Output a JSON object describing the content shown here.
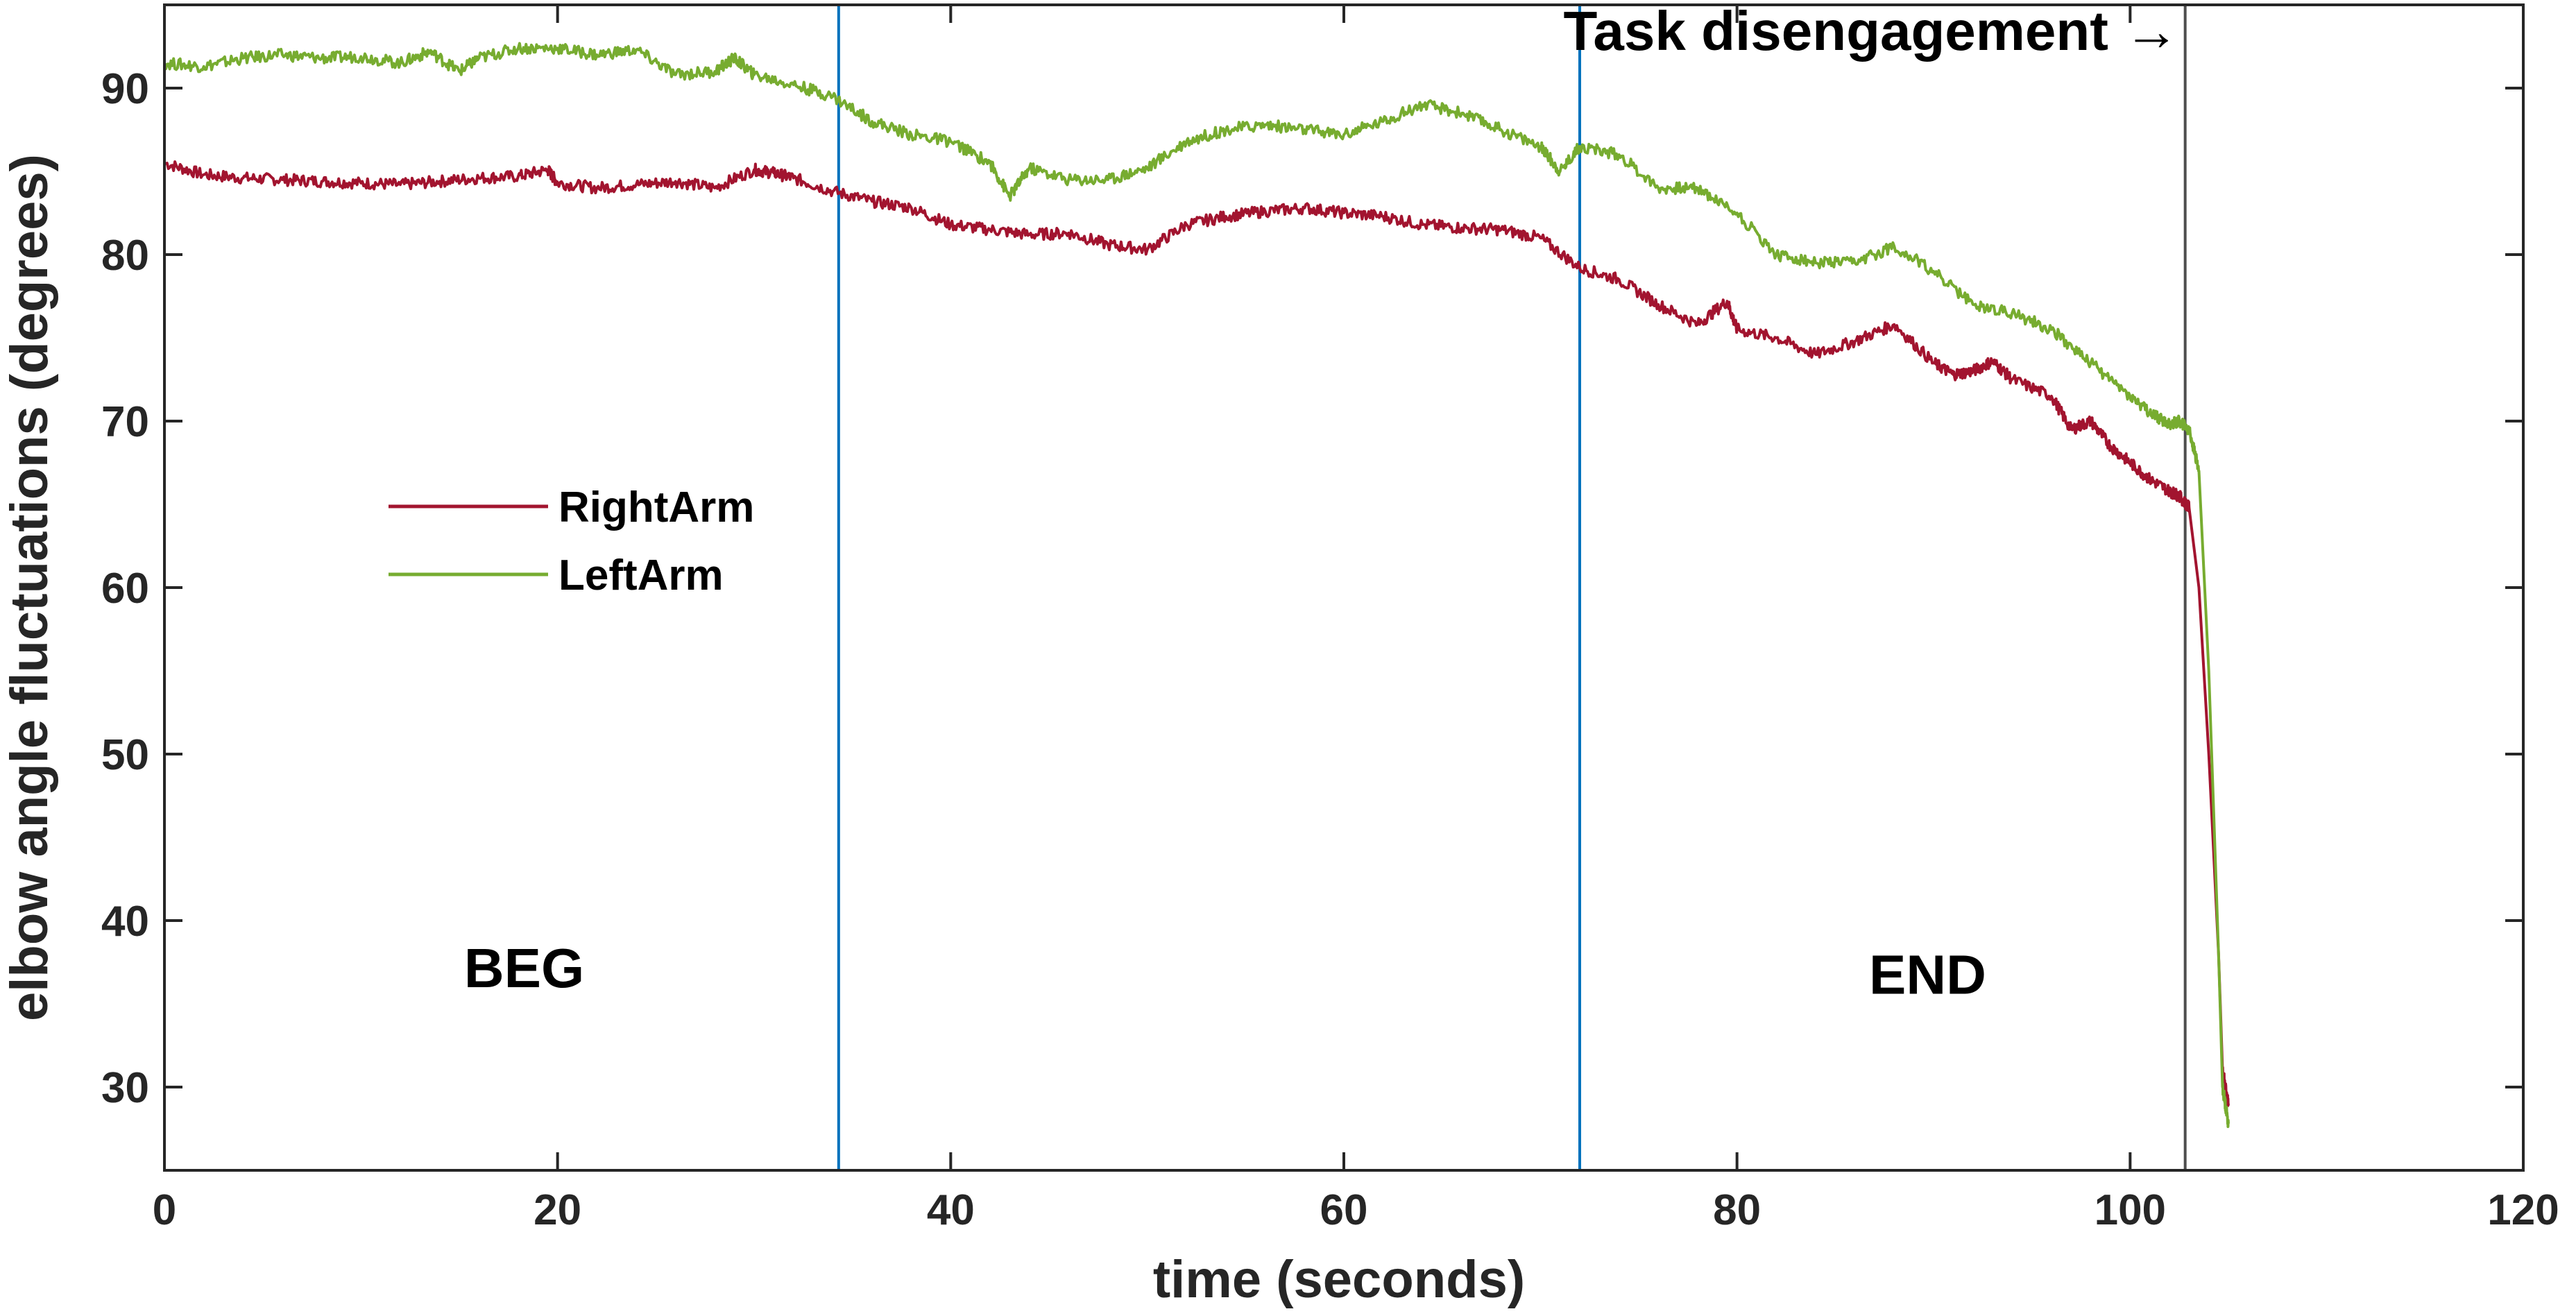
{
  "chart_data": {
    "type": "line",
    "title": "",
    "xlabel": "time (seconds)",
    "ylabel": "elbow angle fluctuations (degrees)",
    "xlim": [
      0,
      120
    ],
    "ylim": [
      25,
      95
    ],
    "xticks": [
      0,
      20,
      40,
      60,
      80,
      100,
      120
    ],
    "yticks": [
      30,
      40,
      50,
      60,
      70,
      80,
      90
    ],
    "xtick_labels": [
      "0",
      "20",
      "40",
      "60",
      "80",
      "100",
      "120"
    ],
    "ytick_labels": [
      "30",
      "40",
      "50",
      "60",
      "70",
      "80",
      "90"
    ],
    "grid": false,
    "legend_position": "left",
    "series": [
      {
        "name": "RightArm",
        "color": "#a2142f",
        "x": [
          0,
          2,
          4,
          6,
          8,
          10,
          12,
          14,
          16,
          18,
          19.5,
          20,
          22,
          24,
          26,
          28,
          30,
          31,
          32,
          34,
          36,
          38,
          40,
          42,
          44,
          46,
          48,
          50,
          52,
          54,
          56,
          58,
          60,
          62,
          64,
          66,
          68,
          70,
          72,
          74,
          76,
          78,
          79.5,
          80,
          82,
          84,
          86,
          88,
          90,
          91,
          92,
          93,
          94,
          96,
          97,
          98,
          99,
          100,
          101,
          102,
          102.5,
          103,
          103.5,
          104,
          104.5,
          104.7,
          105
        ],
        "y": [
          85.5,
          84.8,
          84.6,
          84.5,
          84.4,
          84.3,
          84.2,
          84.4,
          84.6,
          84.7,
          85.1,
          84.3,
          84.0,
          84.2,
          84.4,
          84.0,
          85.1,
          84.9,
          84.6,
          83.8,
          83.2,
          82.8,
          81.8,
          81.5,
          81.2,
          81.3,
          80.6,
          80.3,
          81.8,
          82.3,
          82.6,
          82.8,
          82.5,
          82.3,
          81.8,
          81.6,
          81.5,
          81.0,
          79.2,
          78.5,
          77.0,
          75.8,
          77.2,
          75.5,
          75.0,
          74.0,
          74.8,
          75.8,
          73.5,
          72.8,
          73.0,
          73.6,
          72.5,
          71.5,
          69.5,
          70.0,
          68.5,
          67.5,
          66.5,
          65.8,
          65.5,
          64.8,
          60.0,
          50.0,
          38.0,
          31.0,
          29.0
        ]
      },
      {
        "name": "LeftArm",
        "color": "#77ac30",
        "x": [
          0,
          2,
          4,
          6,
          8,
          10,
          12,
          13.5,
          15,
          16,
          18,
          20,
          22,
          24,
          26,
          28,
          29,
          30,
          32,
          34,
          36,
          38,
          40,
          42,
          43,
          44,
          46,
          48,
          50,
          52,
          54,
          56,
          58,
          60,
          62,
          64,
          66,
          68,
          70,
          71,
          72,
          74,
          76,
          78,
          80,
          82,
          84,
          86,
          88,
          90,
          92,
          94,
          96,
          98,
          100,
          101,
          102,
          102.5,
          103,
          103.5,
          104,
          104.5,
          104.7,
          105
        ],
        "y": [
          91.5,
          91.3,
          91.8,
          92.0,
          91.8,
          91.9,
          91.5,
          92.2,
          91.0,
          91.8,
          92.4,
          92.4,
          92.0,
          92.3,
          90.8,
          91.0,
          91.8,
          90.8,
          90.2,
          89.5,
          88.0,
          87.2,
          86.8,
          85.5,
          83.5,
          85.2,
          84.5,
          84.5,
          85.2,
          86.8,
          87.5,
          87.8,
          87.5,
          87.2,
          88.0,
          89.0,
          88.5,
          87.5,
          86.5,
          85.0,
          86.5,
          86.0,
          84.0,
          84.0,
          82.5,
          80.0,
          79.5,
          79.5,
          80.5,
          79.0,
          77.0,
          76.5,
          75.5,
          73.5,
          71.5,
          70.5,
          69.8,
          70.0,
          69.5,
          67.0,
          55.0,
          38.0,
          30.0,
          27.8
        ]
      }
    ],
    "vertical_lines": [
      {
        "x": 34.3,
        "color": "#0072bd"
      },
      {
        "x": 72.0,
        "color": "#0072bd"
      },
      {
        "x": 102.8,
        "color": "#4d4d4d"
      }
    ],
    "annotations": [
      {
        "text": "BEG",
        "x": 18.3,
        "y": 36.0
      },
      {
        "text": "END",
        "x": 89.7,
        "y": 35.6
      },
      {
        "text": "Task disengagement →",
        "x": 102.5,
        "y": 92.3
      }
    ]
  }
}
